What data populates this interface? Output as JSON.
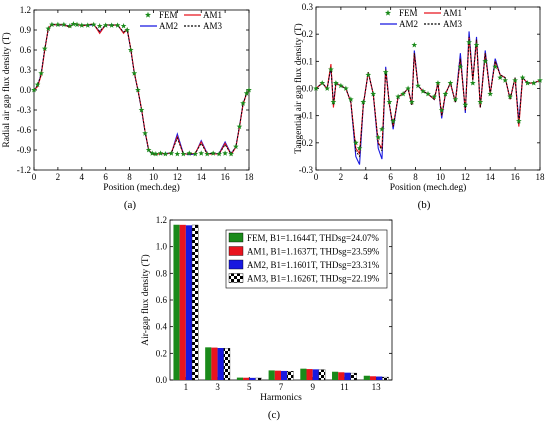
{
  "colors": {
    "fem": "#1a8a1a",
    "am1": "#e8141e",
    "am2": "#1818e0",
    "am3": "#000000"
  },
  "chart_data": [
    {
      "id": "a",
      "type": "line",
      "caption": "(a)",
      "xlabel": "Position (mech.deg)",
      "ylabel": "Radial air gap flux density (T)",
      "xlim": [
        0,
        18
      ],
      "ylim": [
        -1.2,
        1.2
      ],
      "xticks": [
        "0",
        "2",
        "4",
        "6",
        "8",
        "10",
        "12",
        "14",
        "16",
        "18"
      ],
      "yticks": [
        "-1.2",
        "-0.9",
        "-0.6",
        "-0.3",
        "0.0",
        "0.3",
        "0.6",
        "0.9",
        "1.2"
      ],
      "legend": [
        "FEM",
        "AM1",
        "AM2",
        "AM3"
      ],
      "x": [
        0,
        0.3,
        0.6,
        0.9,
        1.2,
        1.5,
        2.0,
        2.5,
        3.0,
        3.3,
        3.6,
        4.0,
        4.5,
        5.0,
        5.5,
        6.0,
        6.5,
        7.0,
        7.5,
        7.8,
        8.1,
        8.4,
        8.7,
        9.0,
        9.3,
        9.6,
        9.9,
        10.2,
        10.6,
        11.0,
        11.5,
        12.0,
        12.5,
        13.0,
        13.5,
        14.0,
        14.5,
        15.0,
        15.5,
        16.0,
        16.5,
        16.9,
        17.2,
        17.5,
        17.8,
        18.0
      ],
      "series": [
        {
          "name": "FEM",
          "values": [
            0.0,
            0.08,
            0.25,
            0.62,
            0.92,
            0.98,
            0.98,
            0.98,
            0.96,
            0.99,
            0.98,
            0.97,
            0.97,
            0.98,
            0.96,
            0.97,
            0.97,
            0.97,
            0.96,
            0.9,
            0.6,
            0.25,
            0.0,
            -0.3,
            -0.65,
            -0.9,
            -0.95,
            -0.96,
            -0.95,
            -0.96,
            -0.95,
            -0.96,
            -0.96,
            -0.95,
            -0.96,
            -0.95,
            -0.96,
            -0.95,
            -0.96,
            -0.95,
            -0.96,
            -0.85,
            -0.55,
            -0.2,
            -0.05,
            0.0
          ]
        },
        {
          "name": "AM1",
          "values": [
            0.0,
            0.05,
            0.22,
            0.6,
            0.93,
            0.98,
            0.98,
            0.98,
            0.94,
            1.0,
            0.99,
            0.96,
            0.98,
            0.99,
            0.85,
            0.98,
            0.97,
            0.98,
            0.85,
            0.92,
            0.62,
            0.26,
            0.0,
            -0.28,
            -0.62,
            -0.9,
            -0.96,
            -0.97,
            -0.95,
            -0.96,
            -0.94,
            -0.7,
            -0.96,
            -0.96,
            -0.95,
            -0.78,
            -0.96,
            -0.96,
            -0.96,
            -0.8,
            -0.97,
            -0.86,
            -0.56,
            -0.22,
            -0.05,
            0.0
          ]
        },
        {
          "name": "AM2",
          "values": [
            0.0,
            0.06,
            0.24,
            0.61,
            0.92,
            0.99,
            0.97,
            0.98,
            0.95,
            1.0,
            0.98,
            0.97,
            0.97,
            0.98,
            0.87,
            0.97,
            0.98,
            0.97,
            0.86,
            0.91,
            0.61,
            0.25,
            0.0,
            -0.29,
            -0.63,
            -0.91,
            -0.95,
            -0.96,
            -0.96,
            -0.95,
            -0.95,
            -0.66,
            -0.95,
            -0.97,
            -0.96,
            -0.76,
            -0.95,
            -0.96,
            -0.95,
            -0.78,
            -0.96,
            -0.85,
            -0.55,
            -0.21,
            -0.05,
            0.0
          ]
        },
        {
          "name": "AM3",
          "values": [
            0.0,
            0.07,
            0.24,
            0.61,
            0.92,
            0.98,
            0.98,
            0.97,
            0.95,
            0.99,
            0.98,
            0.97,
            0.98,
            0.98,
            0.88,
            0.98,
            0.97,
            0.97,
            0.87,
            0.91,
            0.61,
            0.25,
            0.0,
            -0.29,
            -0.63,
            -0.9,
            -0.96,
            -0.96,
            -0.95,
            -0.96,
            -0.95,
            -0.72,
            -0.96,
            -0.96,
            -0.95,
            -0.8,
            -0.96,
            -0.95,
            -0.96,
            -0.82,
            -0.96,
            -0.85,
            -0.55,
            -0.21,
            -0.05,
            0.0
          ]
        }
      ]
    },
    {
      "id": "b",
      "type": "line",
      "caption": "(b)",
      "xlabel": "Position (mech.deg)",
      "ylabel": "Tangential air gap flux density (T)",
      "xlim": [
        0,
        18
      ],
      "ylim": [
        -0.3,
        0.3
      ],
      "xticks": [
        "0",
        "2",
        "4",
        "6",
        "8",
        "10",
        "12",
        "14",
        "16",
        "18"
      ],
      "yticks": [
        "-0.3",
        "-0.2",
        "-0.1",
        "0.0",
        "0.1",
        "0.2",
        "0.3"
      ],
      "legend": [
        "FEM",
        "AM1",
        "AM2",
        "AM3"
      ],
      "x": [
        0,
        0.5,
        0.9,
        1.2,
        1.4,
        1.6,
        2.0,
        2.4,
        2.8,
        3.2,
        3.5,
        3.8,
        4.2,
        4.6,
        5.0,
        5.3,
        5.6,
        5.9,
        6.2,
        6.6,
        7.0,
        7.4,
        7.7,
        7.9,
        8.2,
        8.6,
        9.0,
        9.5,
        9.8,
        10.1,
        10.4,
        10.8,
        11.2,
        11.6,
        12.0,
        12.3,
        12.6,
        12.9,
        13.2,
        13.6,
        14.0,
        14.4,
        14.8,
        15.2,
        15.6,
        16.0,
        16.3,
        16.6,
        17.0,
        17.5,
        18.0
      ],
      "series": [
        {
          "name": "FEM",
          "values": [
            0.0,
            0.02,
            0.0,
            0.07,
            -0.05,
            0.02,
            0.01,
            0.0,
            -0.04,
            -0.2,
            -0.22,
            -0.05,
            0.05,
            -0.02,
            -0.18,
            -0.15,
            0.06,
            -0.05,
            -0.12,
            -0.03,
            -0.02,
            0.0,
            -0.05,
            0.16,
            0.01,
            -0.01,
            -0.02,
            -0.03,
            0.02,
            -0.08,
            -0.02,
            0.02,
            -0.04,
            0.08,
            -0.06,
            0.17,
            0.02,
            0.16,
            -0.05,
            0.1,
            -0.02,
            0.08,
            0.04,
            0.03,
            -0.03,
            0.03,
            -0.12,
            0.04,
            0.02,
            0.02,
            0.03
          ]
        },
        {
          "name": "AM1",
          "values": [
            0.0,
            0.02,
            0.0,
            0.09,
            -0.07,
            0.02,
            0.01,
            0.0,
            -0.05,
            -0.22,
            -0.24,
            -0.06,
            0.06,
            -0.02,
            -0.2,
            -0.22,
            0.07,
            -0.06,
            -0.14,
            -0.03,
            -0.02,
            0.0,
            -0.06,
            0.13,
            0.01,
            -0.01,
            -0.02,
            -0.04,
            0.02,
            -0.1,
            -0.02,
            0.02,
            -0.05,
            0.11,
            -0.08,
            0.19,
            0.03,
            0.18,
            -0.07,
            0.13,
            -0.02,
            0.1,
            0.05,
            0.04,
            -0.04,
            0.04,
            -0.14,
            0.04,
            0.02,
            0.02,
            0.03
          ]
        },
        {
          "name": "AM2",
          "values": [
            0.0,
            0.02,
            0.0,
            0.08,
            -0.06,
            0.02,
            0.01,
            0.0,
            -0.05,
            -0.25,
            -0.28,
            -0.06,
            0.06,
            -0.02,
            -0.22,
            -0.26,
            0.08,
            -0.06,
            -0.15,
            -0.03,
            -0.02,
            0.0,
            -0.06,
            0.14,
            0.01,
            -0.01,
            -0.02,
            -0.04,
            0.02,
            -0.11,
            -0.02,
            0.02,
            -0.05,
            0.13,
            -0.09,
            0.21,
            0.03,
            0.19,
            -0.07,
            0.14,
            -0.02,
            0.11,
            0.05,
            0.04,
            -0.04,
            0.04,
            -0.12,
            0.04,
            0.02,
            0.02,
            0.03
          ]
        },
        {
          "name": "AM3",
          "values": [
            0.0,
            0.02,
            0.0,
            0.08,
            -0.06,
            0.02,
            0.01,
            0.0,
            -0.05,
            -0.23,
            -0.25,
            -0.06,
            0.06,
            -0.02,
            -0.2,
            -0.23,
            0.07,
            -0.06,
            -0.14,
            -0.03,
            -0.02,
            0.0,
            -0.06,
            0.13,
            0.01,
            -0.01,
            -0.02,
            -0.04,
            0.02,
            -0.1,
            -0.02,
            0.02,
            -0.05,
            0.11,
            -0.08,
            0.19,
            0.03,
            0.18,
            -0.07,
            0.13,
            -0.02,
            0.1,
            0.05,
            0.04,
            -0.04,
            0.04,
            -0.13,
            0.04,
            0.02,
            0.02,
            0.03
          ]
        }
      ]
    },
    {
      "id": "c",
      "type": "bar",
      "caption": "(c)",
      "xlabel": "Harmonics",
      "ylabel": "Air-gap flux density (T)",
      "ylim": [
        0,
        1.2
      ],
      "yticks": [
        "0.0",
        "0.2",
        "0.4",
        "0.6",
        "0.8",
        "1.0",
        "1.2"
      ],
      "categories": [
        "1",
        "3",
        "5",
        "7",
        "9",
        "11",
        "13"
      ],
      "series": [
        {
          "name": "FEM",
          "legend": "FEM, B1=1.1644T, THDsg=24.07%",
          "values": [
            1.1644,
            0.245,
            0.018,
            0.072,
            0.085,
            0.062,
            0.032
          ]
        },
        {
          "name": "AM1",
          "legend": "AM1, B1=1.1637T, THDsg=23.59%",
          "values": [
            1.1637,
            0.243,
            0.017,
            0.07,
            0.082,
            0.058,
            0.028
          ]
        },
        {
          "name": "AM2",
          "legend": "AM2, B1=1.1601T, THDsg=23.31%",
          "values": [
            1.1601,
            0.24,
            0.016,
            0.068,
            0.08,
            0.055,
            0.026
          ]
        },
        {
          "name": "AM3",
          "legend": "AM3, B1=1.1626T, THDsg=22.19%",
          "values": [
            1.1626,
            0.238,
            0.015,
            0.066,
            0.078,
            0.052,
            0.022
          ]
        }
      ]
    }
  ]
}
